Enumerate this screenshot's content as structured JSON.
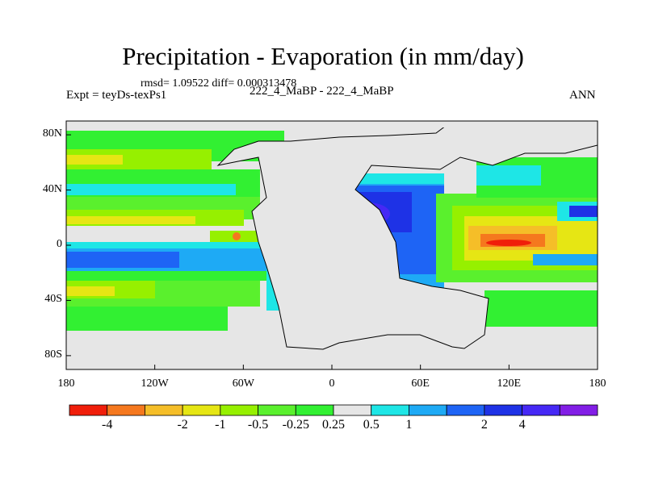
{
  "title": "Precipitation - Evaporation (in mm/day)",
  "stats_line": "rmsd= 1.09522 diff= 0.000313478",
  "experiment": "Expt = teyDs-texPs1",
  "case_label": "222_4_MaBP - 222_4_MaBP",
  "season": "ANN",
  "map": {
    "projection": "cylindrical equidistant",
    "lon_range": [
      -180,
      180
    ],
    "lat_range": [
      -90,
      90
    ],
    "x_ticks": [
      {
        "value": -180,
        "label": "180"
      },
      {
        "value": -120,
        "label": "120W"
      },
      {
        "value": -60,
        "label": "60W"
      },
      {
        "value": 0,
        "label": "0"
      },
      {
        "value": 60,
        "label": "60E"
      },
      {
        "value": 120,
        "label": "120E"
      },
      {
        "value": 180,
        "label": "180"
      }
    ],
    "y_ticks": [
      {
        "value": 80,
        "label": "80N"
      },
      {
        "value": 40,
        "label": "40N"
      },
      {
        "value": 0,
        "label": "0"
      },
      {
        "value": -40,
        "label": "40S"
      },
      {
        "value": -80,
        "label": "80S"
      }
    ]
  },
  "colorbar": {
    "colors": [
      "#f01e0a",
      "#f5781e",
      "#f5be28",
      "#e6e614",
      "#96f000",
      "#5af02d",
      "#32f032",
      "#e6e6e6",
      "#1ee6e6",
      "#1eaaf5",
      "#1e64f5",
      "#1e32e6",
      "#4628f5",
      "#821ee6"
    ],
    "labels": [
      {
        "boundary": 1,
        "text": "-4"
      },
      {
        "boundary": 3,
        "text": "-2"
      },
      {
        "boundary": 4,
        "text": "-1"
      },
      {
        "boundary": 5,
        "text": "-0.5"
      },
      {
        "boundary": 6,
        "text": "-0.25"
      },
      {
        "boundary": 7,
        "text": "0.25"
      },
      {
        "boundary": 8,
        "text": "0.5"
      },
      {
        "boundary": 9,
        "text": "1"
      },
      {
        "boundary": 11,
        "text": "2"
      },
      {
        "boundary": 12,
        "text": "4"
      }
    ]
  }
}
